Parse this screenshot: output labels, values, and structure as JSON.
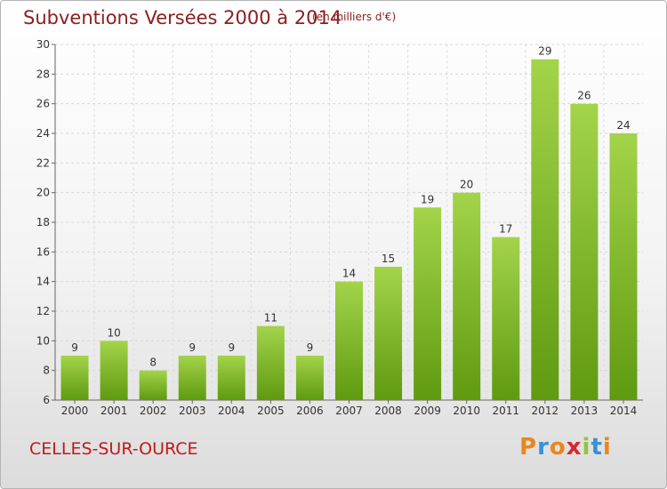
{
  "title": "Subventions Versées 2000 à 2014",
  "unit_note": "(en milliers d'€)",
  "commune": "CELLES-SUR-OURCE",
  "logo": {
    "letters": [
      "P",
      "r",
      "o",
      "x",
      "i",
      "t",
      "i"
    ],
    "colors": [
      "#e8871e",
      "#3a8fd6",
      "#e8871e",
      "#d9262e",
      "#8dc63f",
      "#3a8fd6",
      "#e8871e"
    ]
  },
  "colors": {
    "bar_top": "#a3d44a",
    "bar_bottom": "#5f9a10",
    "title": "#8a2020",
    "commune": "#c01a1a"
  },
  "chart_data": {
    "type": "bar",
    "title": "Subventions Versées 2000 à 2014",
    "subtitle": "(en milliers d'€)",
    "categories": [
      "2000",
      "2001",
      "2002",
      "2003",
      "2004",
      "2005",
      "2006",
      "2007",
      "2008",
      "2009",
      "2010",
      "2011",
      "2012",
      "2013",
      "2014"
    ],
    "values": [
      9,
      10,
      8,
      9,
      9,
      11,
      9,
      14,
      15,
      19,
      20,
      17,
      29,
      26,
      24
    ],
    "ylim": [
      6,
      30
    ],
    "yticks": [
      6,
      8,
      10,
      12,
      14,
      16,
      18,
      20,
      22,
      24,
      26,
      28,
      30
    ],
    "grid": true,
    "legend": "none"
  }
}
